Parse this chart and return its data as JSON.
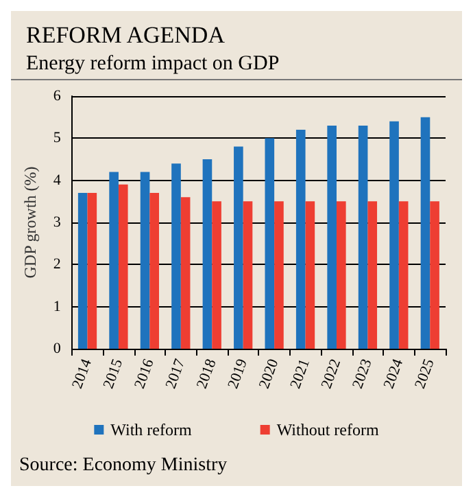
{
  "chart_data": {
    "type": "bar",
    "title": "REFORM AGENDA",
    "subtitle": "Energy reform impact on GDP",
    "ylabel": "GDP growth (%)",
    "categories": [
      "2014",
      "2015",
      "2016",
      "2017",
      "2018",
      "2019",
      "2020",
      "2021",
      "2022",
      "2023",
      "2024",
      "2025"
    ],
    "series": [
      {
        "name": "With reform",
        "color": "#1f73bd",
        "values": [
          3.7,
          4.2,
          4.2,
          4.4,
          4.5,
          4.8,
          5.0,
          5.2,
          5.3,
          5.3,
          5.4,
          5.5
        ]
      },
      {
        "name": "Without reform",
        "color": "#ee3e32",
        "values": [
          3.7,
          3.9,
          3.7,
          3.6,
          3.5,
          3.5,
          3.5,
          3.5,
          3.5,
          3.5,
          3.5,
          3.5
        ]
      }
    ],
    "ylim": [
      0,
      6
    ],
    "yticks": [
      0,
      1,
      2,
      3,
      4,
      5,
      6
    ],
    "grid": "y",
    "legend": "bottom",
    "annotations": [
      "Source: Economy Ministry"
    ]
  }
}
